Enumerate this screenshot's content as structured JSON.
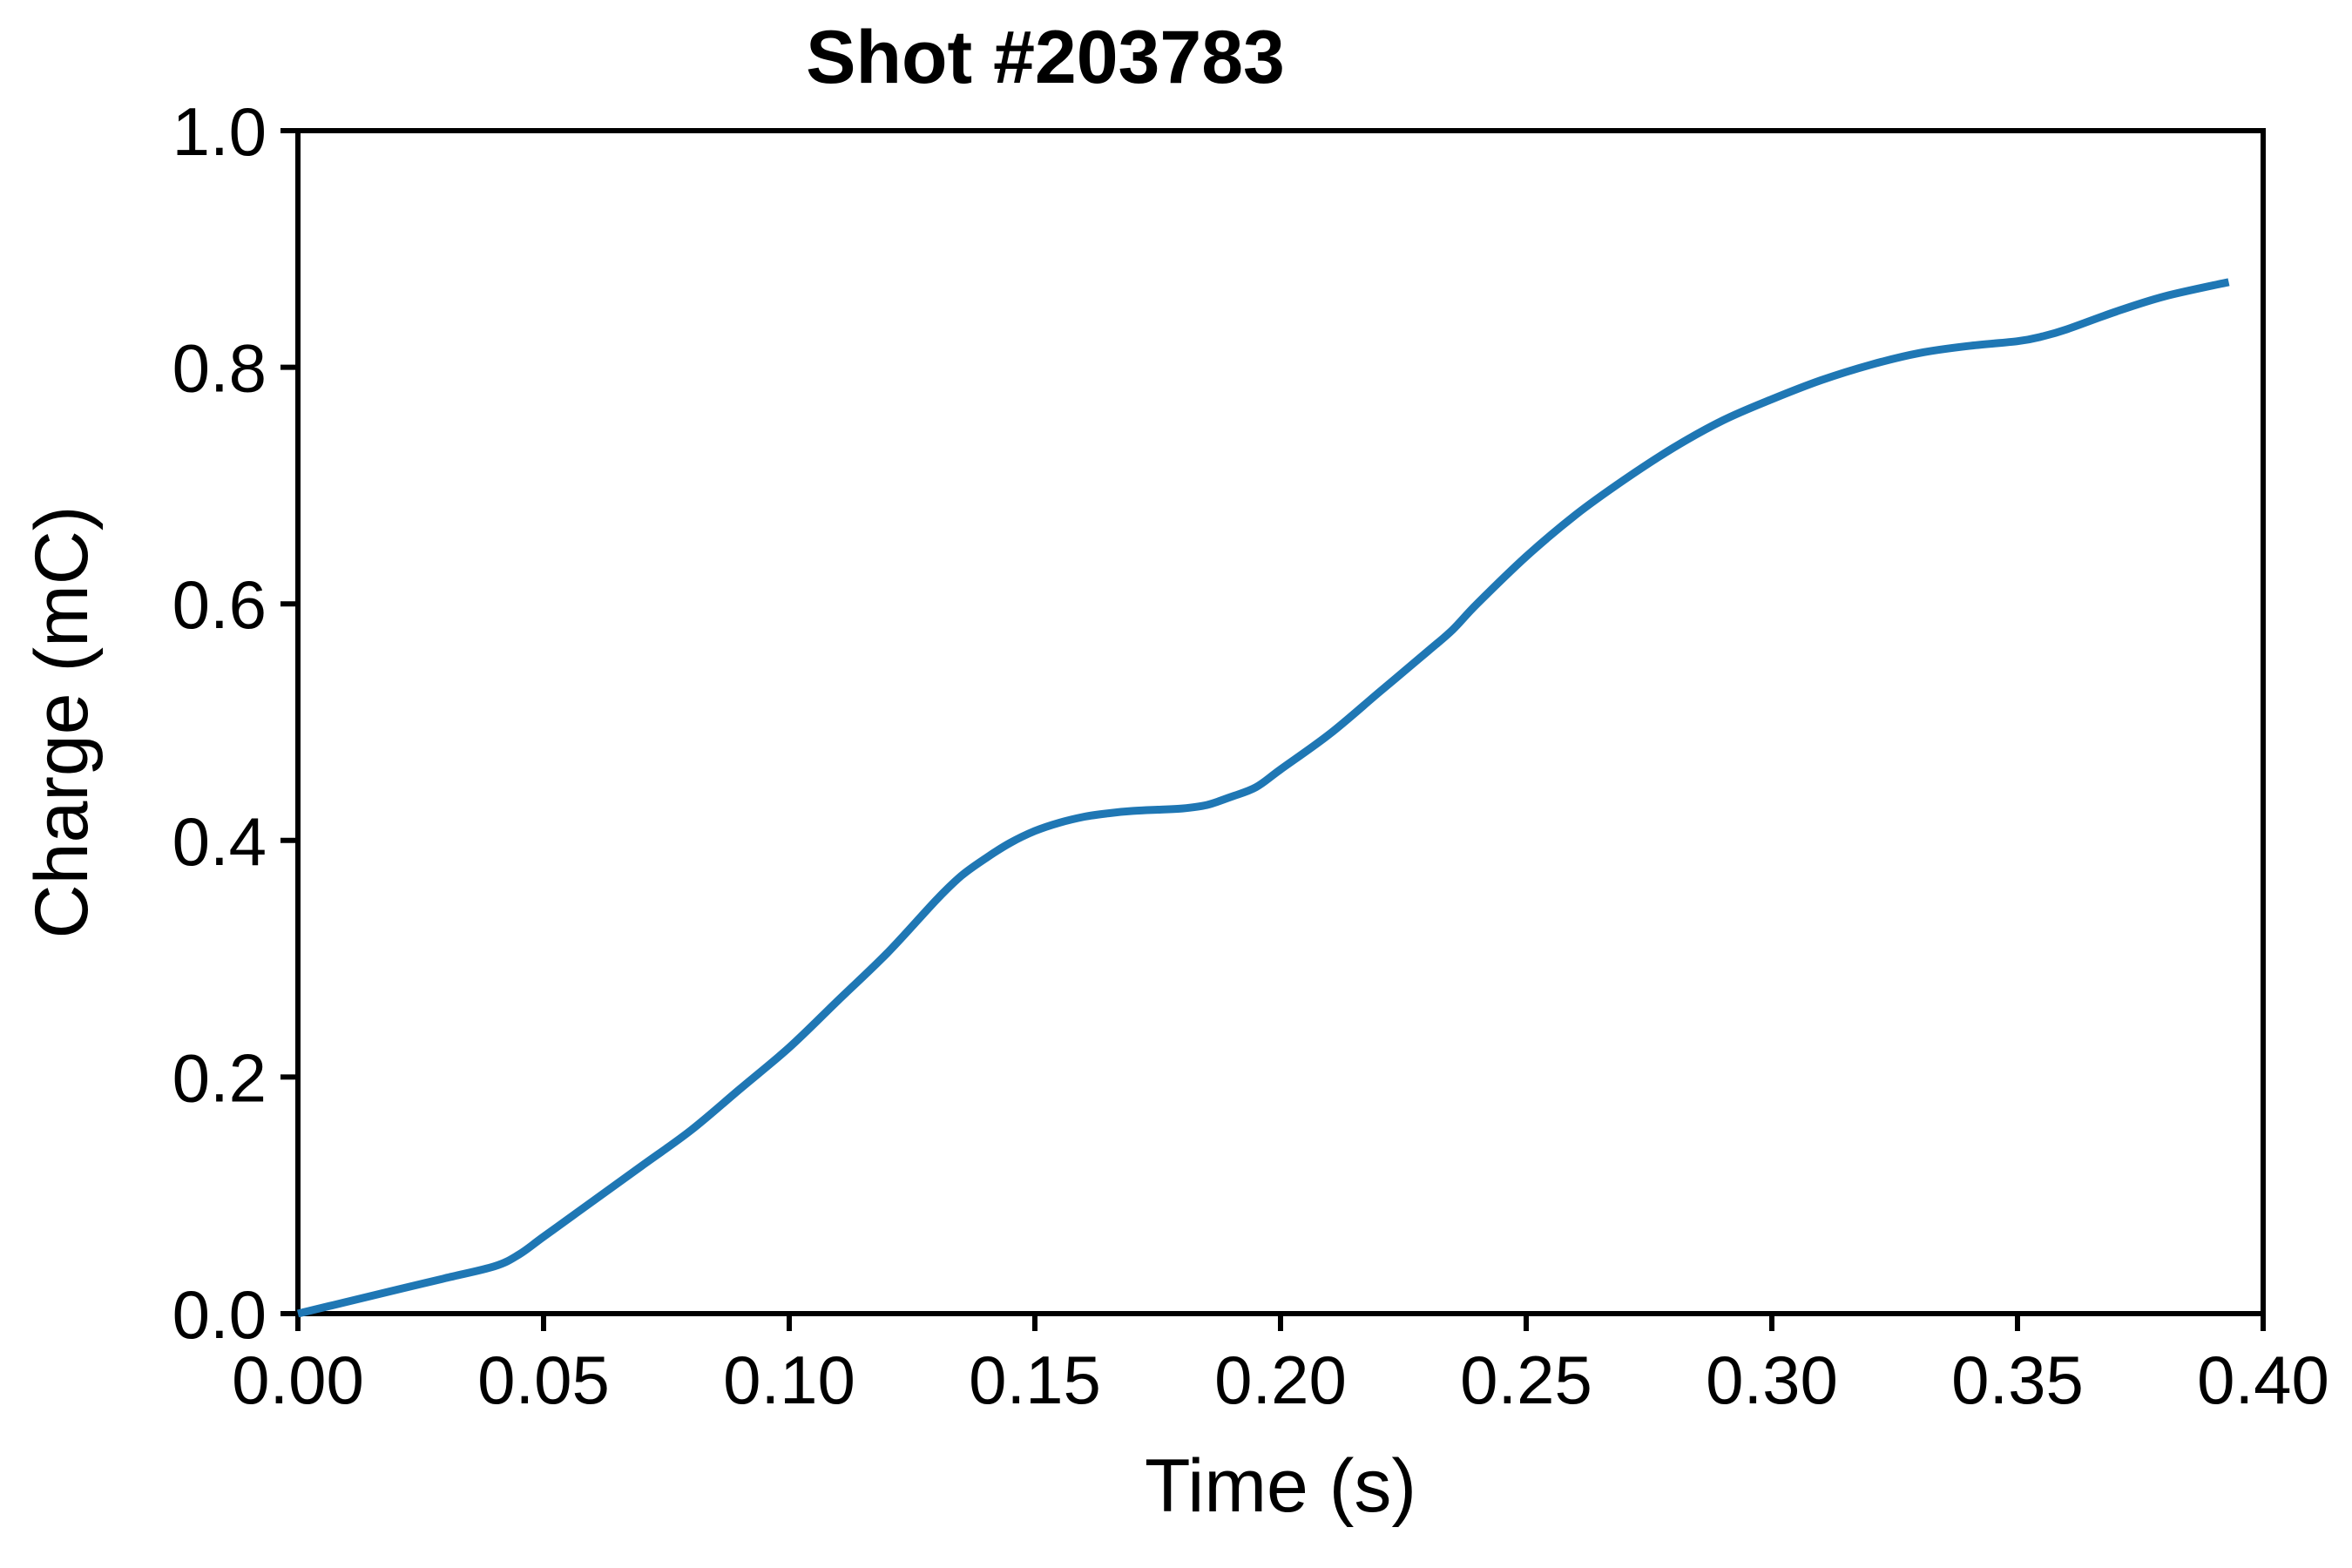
{
  "chart_data": {
    "type": "line",
    "title": "Shot #203783",
    "xlabel": "Time (s)",
    "ylabel": "Charge (mC)",
    "xlim": [
      0.0,
      0.4
    ],
    "ylim": [
      0.0,
      1.0
    ],
    "xticks": [
      {
        "value": 0.0,
        "label": "0.00"
      },
      {
        "value": 0.05,
        "label": "0.05"
      },
      {
        "value": 0.1,
        "label": "0.10"
      },
      {
        "value": 0.15,
        "label": "0.15"
      },
      {
        "value": 0.2,
        "label": "0.20"
      },
      {
        "value": 0.25,
        "label": "0.25"
      },
      {
        "value": 0.3,
        "label": "0.30"
      },
      {
        "value": 0.35,
        "label": "0.35"
      },
      {
        "value": 0.4,
        "label": "0.40"
      }
    ],
    "yticks": [
      {
        "value": 0.0,
        "label": "0.0"
      },
      {
        "value": 0.2,
        "label": "0.2"
      },
      {
        "value": 0.4,
        "label": "0.4"
      },
      {
        "value": 0.6,
        "label": "0.6"
      },
      {
        "value": 0.8,
        "label": "0.8"
      },
      {
        "value": 1.0,
        "label": "1.0"
      }
    ],
    "grid": false,
    "series": [
      {
        "color": "#1f77b4",
        "x": [
          0.0,
          0.01,
          0.02,
          0.03,
          0.04,
          0.045,
          0.05,
          0.06,
          0.07,
          0.08,
          0.09,
          0.1,
          0.11,
          0.12,
          0.13,
          0.135,
          0.14,
          0.145,
          0.15,
          0.155,
          0.16,
          0.165,
          0.17,
          0.175,
          0.18,
          0.185,
          0.19,
          0.195,
          0.2,
          0.21,
          0.22,
          0.23,
          0.235,
          0.24,
          0.25,
          0.26,
          0.27,
          0.28,
          0.29,
          0.3,
          0.31,
          0.32,
          0.33,
          0.34,
          0.35,
          0.355,
          0.36,
          0.37,
          0.38,
          0.393
        ],
        "y": [
          0.0,
          0.01,
          0.02,
          0.03,
          0.04,
          0.05,
          0.065,
          0.095,
          0.125,
          0.155,
          0.19,
          0.225,
          0.265,
          0.305,
          0.35,
          0.37,
          0.385,
          0.398,
          0.408,
          0.415,
          0.42,
          0.423,
          0.425,
          0.426,
          0.427,
          0.43,
          0.437,
          0.445,
          0.46,
          0.49,
          0.525,
          0.56,
          0.578,
          0.6,
          0.64,
          0.675,
          0.705,
          0.732,
          0.755,
          0.773,
          0.789,
          0.802,
          0.812,
          0.818,
          0.822,
          0.826,
          0.832,
          0.847,
          0.86,
          0.872
        ]
      }
    ]
  }
}
